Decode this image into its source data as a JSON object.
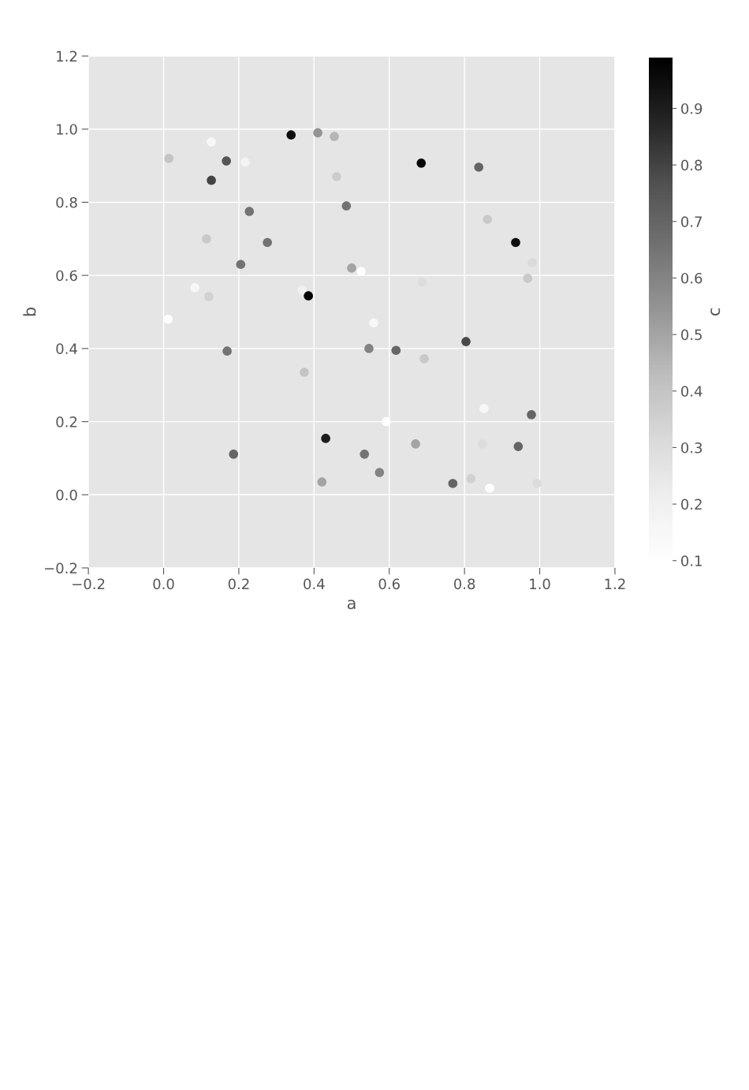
{
  "chart_data": {
    "type": "scatter",
    "xlabel": "a",
    "ylabel": "b",
    "clabel": "c",
    "marker": "circle",
    "grid": true,
    "x": [
      0.014,
      0.127,
      0.167,
      0.217,
      0.127,
      0.339,
      0.41,
      0.454,
      0.46,
      0.228,
      0.486,
      0.114,
      0.276,
      0.205,
      0.5,
      0.525,
      0.083,
      0.12,
      0.368,
      0.385,
      0.012,
      0.559,
      0.685,
      0.838,
      0.861,
      0.936,
      0.98,
      0.968,
      0.687,
      0.169,
      0.546,
      0.374,
      0.618,
      0.804,
      0.693,
      0.592,
      0.852,
      0.978,
      0.431,
      0.186,
      0.534,
      0.67,
      0.848,
      0.943,
      0.421,
      0.574,
      0.769,
      0.817,
      0.867,
      0.993
    ],
    "values": [
      0.92,
      0.965,
      0.913,
      0.91,
      0.86,
      0.984,
      0.99,
      0.98,
      0.87,
      0.775,
      0.79,
      0.7,
      0.69,
      0.63,
      0.62,
      0.611,
      0.566,
      0.542,
      0.56,
      0.544,
      0.48,
      0.47,
      0.907,
      0.896,
      0.753,
      0.69,
      0.635,
      0.592,
      0.581,
      0.393,
      0.4,
      0.335,
      0.395,
      0.419,
      0.372,
      0.2,
      0.236,
      0.219,
      0.154,
      0.111,
      0.111,
      0.139,
      0.139,
      0.132,
      0.035,
      0.061,
      0.031,
      0.044,
      0.018,
      0.031
    ],
    "cvalues": [
      0.4,
      0.15,
      0.75,
      0.18,
      0.8,
      0.95,
      0.55,
      0.45,
      0.37,
      0.65,
      0.65,
      0.38,
      0.65,
      0.65,
      0.5,
      0.1,
      0.15,
      0.35,
      0.2,
      0.98,
      0.1,
      0.15,
      0.97,
      0.7,
      0.38,
      0.95,
      0.31,
      0.38,
      0.3,
      0.65,
      0.6,
      0.4,
      0.7,
      0.78,
      0.38,
      0.1,
      0.15,
      0.7,
      0.9,
      0.7,
      0.65,
      0.5,
      0.3,
      0.7,
      0.5,
      0.6,
      0.7,
      0.35,
      0.1,
      0.3
    ],
    "xlim": [
      -0.2,
      1.2
    ],
    "ylim": [
      -0.2,
      1.2
    ],
    "xticks": [
      {
        "value": -0.2,
        "label": "−0.2"
      },
      {
        "value": 0,
        "label": "0.0"
      },
      0.2,
      0.4,
      0.6,
      0.8,
      {
        "value": 1,
        "label": "1.0"
      },
      1.2
    ],
    "yticks": [
      {
        "value": -0.2,
        "label": "−0.2"
      },
      {
        "value": 0,
        "label": "0.0"
      },
      0.2,
      0.4,
      0.6,
      0.8,
      {
        "value": 1,
        "label": "1.0"
      },
      1.2
    ],
    "clim": [
      0.09,
      0.99
    ],
    "cticks": [
      0.1,
      0.2,
      0.3,
      0.4,
      0.5,
      0.6,
      0.7,
      0.8,
      0.9
    ]
  }
}
